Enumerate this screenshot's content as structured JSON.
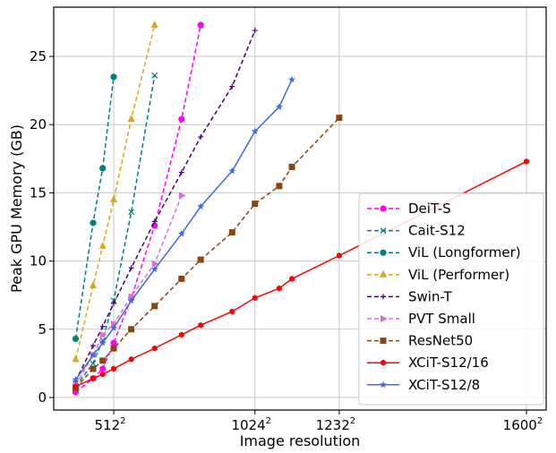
{
  "chart_data": {
    "type": "line",
    "xlabel": "Image resolution",
    "ylabel": "Peak GPU Memory (GB)",
    "x_scale": "resolution squared",
    "xlim": [
      190,
      1650
    ],
    "ylim": [
      -0.9,
      28.5
    ],
    "grid": true,
    "legend_placement": "bottom-right",
    "xticks": [
      {
        "value": 512,
        "label": "512"
      },
      {
        "value": 1024,
        "label": "1024"
      },
      {
        "value": 1232,
        "label": "1232"
      },
      {
        "value": 1600,
        "label": "1600"
      }
    ],
    "yticks": [
      0,
      5,
      10,
      15,
      20,
      25
    ],
    "series": [
      {
        "name": "DeiT-S",
        "color": "#ff00ff",
        "dash": true,
        "marker": "circle",
        "x": [
          224,
          384,
          448,
          512,
          600,
          700,
          800,
          864
        ],
        "y": [
          0.4,
          1.4,
          2.1,
          4.0,
          7.3,
          12.6,
          20.4,
          27.3
        ]
      },
      {
        "name": "Cait-S12",
        "color": "#008080",
        "dash": true,
        "marker": "x",
        "x": [
          224,
          384,
          448,
          512,
          600,
          700
        ],
        "y": [
          0.8,
          2.5,
          4.2,
          7.1,
          13.6,
          23.6
        ]
      },
      {
        "name": "ViL (Longformer)",
        "color": "#008080",
        "dash": true,
        "marker": "octagon",
        "x": [
          224,
          384,
          448,
          512
        ],
        "y": [
          4.3,
          12.8,
          16.8,
          23.5
        ]
      },
      {
        "name": "ViL (Performer)",
        "color": "#daa520",
        "dash": true,
        "marker": "triangle-up",
        "x": [
          224,
          384,
          448,
          512,
          600,
          700
        ],
        "y": [
          2.8,
          8.2,
          11.1,
          14.5,
          20.4,
          27.3
        ]
      },
      {
        "name": "Swin-T",
        "color": "#4b0082",
        "dash": true,
        "marker": "plus",
        "x": [
          224,
          384,
          448,
          512,
          600,
          700,
          800,
          864,
          960,
          1024
        ],
        "y": [
          1.2,
          3.8,
          5.2,
          6.9,
          9.5,
          12.9,
          16.5,
          19.1,
          22.8,
          26.9
        ]
      },
      {
        "name": "PVT Small",
        "color": "#da70d6",
        "dash": true,
        "marker": "triangle-right",
        "x": [
          224,
          384,
          448,
          512,
          600,
          700,
          800
        ],
        "y": [
          0.9,
          3.1,
          4.6,
          5.4,
          7.4,
          9.8,
          14.8
        ]
      },
      {
        "name": "ResNet50",
        "color": "#8b4513",
        "dash": true,
        "marker": "square",
        "x": [
          224,
          384,
          448,
          512,
          600,
          700,
          800,
          864,
          960,
          1024,
          1088,
          1120,
          1232
        ],
        "y": [
          0.7,
          2.1,
          2.7,
          3.6,
          5.0,
          6.7,
          8.7,
          10.1,
          12.1,
          14.2,
          15.5,
          16.9,
          20.5
        ]
      },
      {
        "name": "XCiT-S12/16",
        "color": "#ff0000",
        "dash": false,
        "marker": "hexagon",
        "x": [
          224,
          384,
          448,
          512,
          600,
          700,
          800,
          864,
          960,
          1024,
          1088,
          1120,
          1232,
          1600
        ],
        "y": [
          0.8,
          1.4,
          1.7,
          2.1,
          2.8,
          3.6,
          4.6,
          5.3,
          6.3,
          7.3,
          8.0,
          8.7,
          10.4,
          17.3
        ]
      },
      {
        "name": "XCiT-S12/8",
        "color": "#4169e1",
        "dash": false,
        "marker": "star",
        "x": [
          224,
          384,
          448,
          512,
          600,
          700,
          800,
          864,
          960,
          1024,
          1088,
          1120
        ],
        "y": [
          1.3,
          3.1,
          4.0,
          5.1,
          7.1,
          9.4,
          12.0,
          14.0,
          16.6,
          19.5,
          21.3,
          23.3
        ]
      }
    ]
  }
}
